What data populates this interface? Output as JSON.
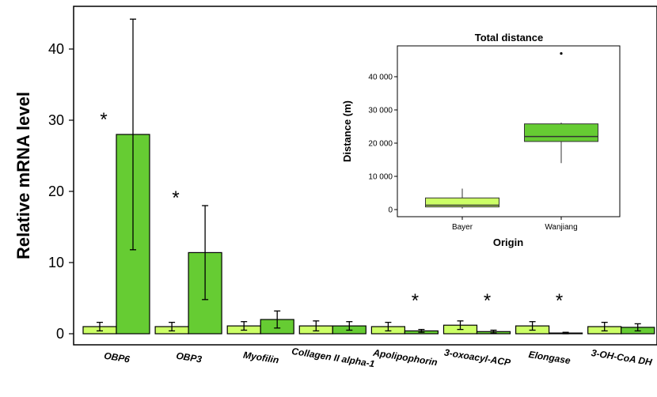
{
  "chart_data": [
    {
      "type": "bar",
      "ylabel": "Relative mRNA level",
      "xlabel": "",
      "ylim": [
        -1,
        46
      ],
      "yticks": [
        0,
        10,
        20,
        30,
        40
      ],
      "categories": [
        "OBP6",
        "OBP3",
        "Myofilin",
        "Collagen II alpha-1",
        "Apolipophorin",
        "3-oxoacyl-ACP",
        "Elongase",
        "3-OH-CoA DH"
      ],
      "series": [
        {
          "color": "#ccff66",
          "values": [
            1.0,
            1.0,
            1.1,
            1.1,
            1.0,
            1.2,
            1.1,
            1.0
          ],
          "error": [
            0.6,
            0.6,
            0.6,
            0.7,
            0.6,
            0.6,
            0.6,
            0.6
          ]
        },
        {
          "color": "#66cc33",
          "values": [
            28.0,
            11.4,
            2.0,
            1.1,
            0.4,
            0.3,
            0.1,
            0.9
          ],
          "error": [
            16.2,
            6.6,
            1.2,
            0.6,
            0.2,
            0.2,
            0.1,
            0.5
          ]
        }
      ],
      "significance": [
        "*",
        "*",
        "",
        "",
        "*",
        "*",
        "*",
        ""
      ],
      "axis_color": "#000000"
    },
    {
      "type": "box",
      "title": "Total distance",
      "xlabel": "Origin",
      "ylabel": "Distance (m)",
      "ylim": [
        -2000,
        50000
      ],
      "yticks": [
        0,
        10000,
        20000,
        30000,
        40000
      ],
      "ytick_labels": [
        "0",
        "10 000",
        "20 000",
        "30 000",
        "40 000"
      ],
      "categories": [
        "Bayer",
        "Wanjiang"
      ],
      "boxes": [
        {
          "color": "#ccff66",
          "min": 300,
          "q1": 800,
          "median": 1300,
          "q3": 3500,
          "max": 6300,
          "outliers": []
        },
        {
          "color": "#66cc33",
          "min": 14000,
          "q1": 20500,
          "median": 22000,
          "q3": 25800,
          "max": 26200,
          "outliers": [
            47000
          ]
        }
      ]
    }
  ]
}
